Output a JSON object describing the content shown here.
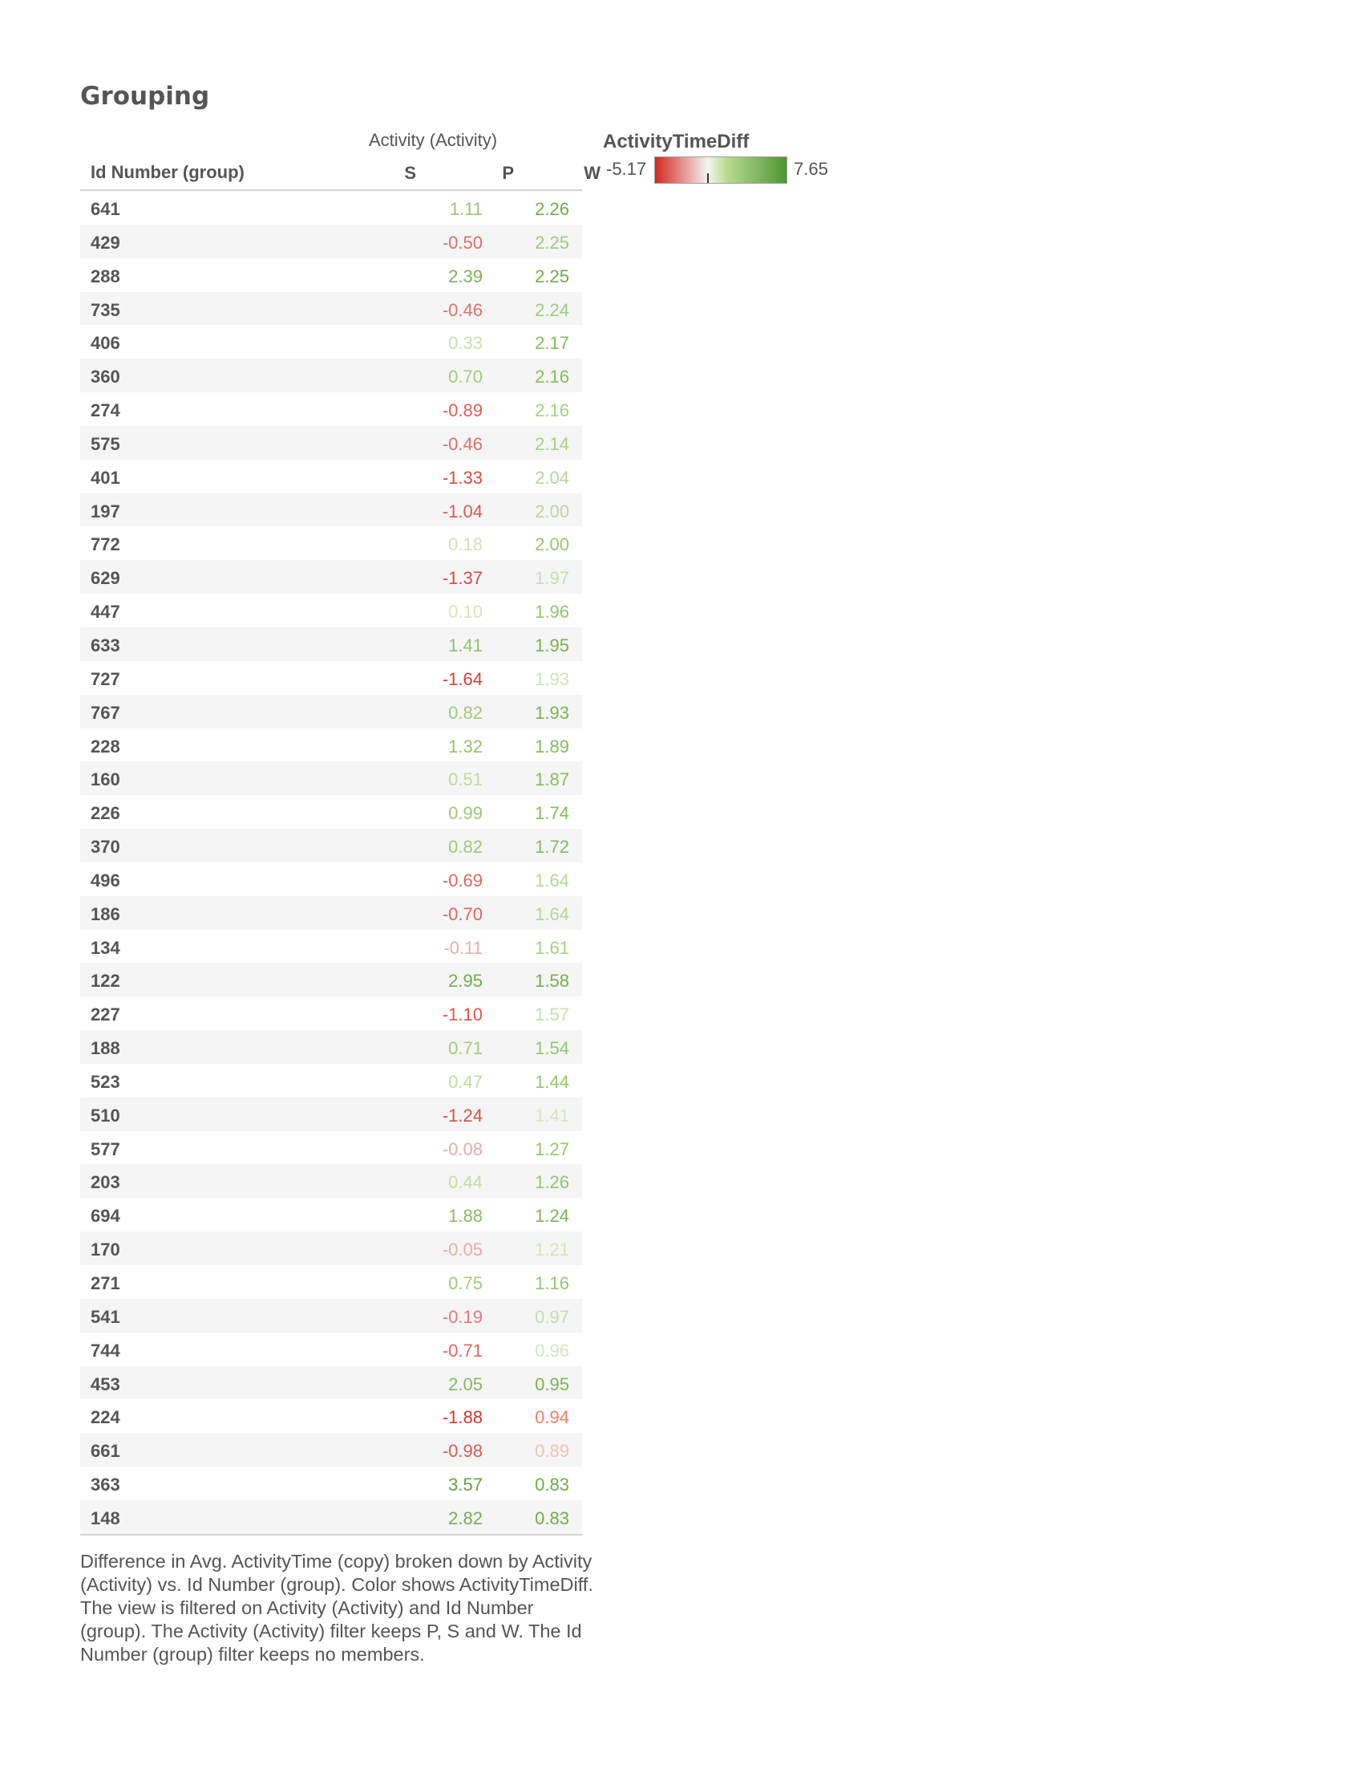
{
  "title": "Grouping",
  "chart_data": {
    "type": "table",
    "column_group_header": "Activity (Activity)",
    "row_header": "Id Number (group)",
    "columns": [
      "S",
      "P",
      "W"
    ],
    "rows": [
      {
        "id": "641",
        "P": 1.11,
        "W": 2.26
      },
      {
        "id": "429",
        "P": -0.5,
        "W": 2.25
      },
      {
        "id": "288",
        "P": 2.39,
        "W": 2.25
      },
      {
        "id": "735",
        "P": -0.46,
        "W": 2.24
      },
      {
        "id": "406",
        "P": 0.33,
        "W": 2.17
      },
      {
        "id": "360",
        "P": 0.7,
        "W": 2.16
      },
      {
        "id": "274",
        "P": -0.89,
        "W": 2.16
      },
      {
        "id": "575",
        "P": -0.46,
        "W": 2.14
      },
      {
        "id": "401",
        "P": -1.33,
        "W": 2.04
      },
      {
        "id": "197",
        "P": -1.04,
        "W": 2.0
      },
      {
        "id": "772",
        "P": 0.18,
        "W": 2.0
      },
      {
        "id": "629",
        "P": -1.37,
        "W": 1.97
      },
      {
        "id": "447",
        "P": 0.1,
        "W": 1.96
      },
      {
        "id": "633",
        "P": 1.41,
        "W": 1.95
      },
      {
        "id": "727",
        "P": -1.64,
        "W": 1.93
      },
      {
        "id": "767",
        "P": 0.82,
        "W": 1.93
      },
      {
        "id": "228",
        "P": 1.32,
        "W": 1.89
      },
      {
        "id": "160",
        "P": 0.51,
        "W": 1.87
      },
      {
        "id": "226",
        "P": 0.99,
        "W": 1.74
      },
      {
        "id": "370",
        "P": 0.82,
        "W": 1.72
      },
      {
        "id": "496",
        "P": -0.69,
        "W": 1.64
      },
      {
        "id": "186",
        "P": -0.7,
        "W": 1.64
      },
      {
        "id": "134",
        "P": -0.11,
        "W": 1.61
      },
      {
        "id": "122",
        "P": 2.95,
        "W": 1.58
      },
      {
        "id": "227",
        "P": -1.1,
        "W": 1.57
      },
      {
        "id": "188",
        "P": 0.71,
        "W": 1.54
      },
      {
        "id": "523",
        "P": 0.47,
        "W": 1.44
      },
      {
        "id": "510",
        "P": -1.24,
        "W": 1.41
      },
      {
        "id": "577",
        "P": -0.08,
        "W": 1.27
      },
      {
        "id": "203",
        "P": 0.44,
        "W": 1.26
      },
      {
        "id": "694",
        "P": 1.88,
        "W": 1.24
      },
      {
        "id": "170",
        "P": -0.05,
        "W": 1.21
      },
      {
        "id": "271",
        "P": 0.75,
        "W": 1.16
      },
      {
        "id": "541",
        "P": -0.19,
        "W": 0.97
      },
      {
        "id": "744",
        "P": -0.71,
        "W": 0.96
      },
      {
        "id": "453",
        "P": 2.05,
        "W": 0.95
      },
      {
        "id": "224",
        "P": -1.88,
        "W": 0.94
      },
      {
        "id": "661",
        "P": -0.98,
        "W": 0.89
      },
      {
        "id": "363",
        "P": 3.57,
        "W": 0.83
      },
      {
        "id": "148",
        "P": 2.82,
        "W": 0.83
      }
    ],
    "W_colors": [
      "#6fae47",
      "#9ccd7a",
      "#6fae47",
      "#9ccd7a",
      "#84bd5e",
      "#84bd5e",
      "#a4d283",
      "#a4d283",
      "#b4d896",
      "#b8d99c",
      "#96c96f",
      "#c6e0b0",
      "#94c76d",
      "#79b452",
      "#cfe4bf",
      "#79b452",
      "#84bd5e",
      "#84bd5e",
      "#84bd5e",
      "#84bd5e",
      "#b4d896",
      "#b4d896",
      "#a4d283",
      "#73b04c",
      "#c6e0b0",
      "#94c76d",
      "#94c76d",
      "#d4e6c6",
      "#94c76d",
      "#94c76d",
      "#79b452",
      "#cfe4bf",
      "#94c76d",
      "#c4dfae",
      "#d4e6c6",
      "#79b452",
      "#ef7f6c",
      "#f1c3b8",
      "#6fae47",
      "#6fae47"
    ],
    "legend": {
      "title": "ActivityTimeDiff",
      "min": -5.17,
      "max": 7.65,
      "min_label": "-5.17",
      "max_label": "7.65",
      "colors": {
        "negative_strong": "#d3291f",
        "neutral": "#f4f4f2",
        "positive_light": "#b9dc90",
        "positive_strong": "#4f9433"
      }
    }
  },
  "caption": "Difference in Avg. ActivityTime (copy) broken down by Activity (Activity) vs. Id Number (group).  Color shows ActivityTimeDiff. The view is filtered on Activity (Activity) and Id Number (group). The Activity (Activity) filter keeps P, S and W. The Id Number (group) filter keeps no members."
}
